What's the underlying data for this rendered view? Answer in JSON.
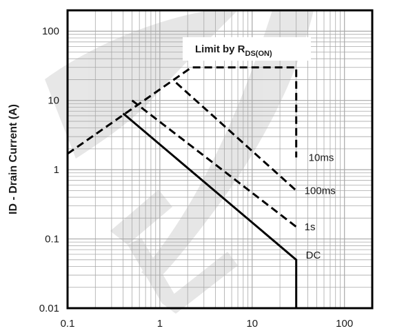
{
  "chart_data": {
    "type": "line",
    "title": "",
    "xlabel": "",
    "ylabel": "ID - Drain Current (A)",
    "xscale": "log",
    "yscale": "log",
    "xlim": [
      0.1,
      200
    ],
    "ylim": [
      0.01,
      200
    ],
    "x_ticks": [
      "0.1",
      "1",
      "10",
      "100"
    ],
    "y_ticks": [
      "100",
      "10",
      "1",
      "0.1",
      "0.01"
    ],
    "grid": true,
    "annotation": {
      "prefix": "Limit by R",
      "subscript": "DS(ON)"
    },
    "series": [
      {
        "name": "10ms",
        "style": "dashed",
        "points": [
          [
            0.1,
            1.7
          ],
          [
            2.2,
            30
          ],
          [
            30,
            30
          ],
          [
            30,
            1.5
          ]
        ]
      },
      {
        "name": "100ms",
        "style": "dashed",
        "points": [
          [
            1.5,
            18
          ],
          [
            30,
            0.5
          ]
        ]
      },
      {
        "name": "1s",
        "style": "dashed",
        "points": [
          [
            0.5,
            10
          ],
          [
            30,
            0.15
          ]
        ]
      },
      {
        "name": "DC",
        "style": "solid",
        "points": [
          [
            0.4,
            6.5
          ],
          [
            30,
            0.05
          ],
          [
            30,
            0.01
          ]
        ]
      }
    ],
    "colors": {
      "curve": "#000000",
      "grid": "#a8a8a8",
      "watermark": "#c9c9c9"
    }
  }
}
